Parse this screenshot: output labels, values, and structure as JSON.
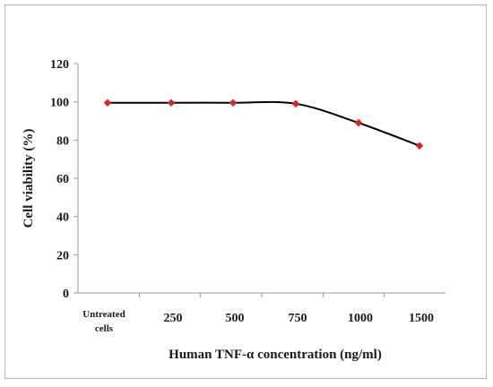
{
  "chart_data": {
    "type": "line",
    "title": "",
    "xlabel": "Human TNF-α concentration (ng/ml)",
    "ylabel": "Cell viability (%)",
    "categories": [
      [
        "Untreated",
        "cells"
      ],
      [
        "250"
      ],
      [
        "500"
      ],
      [
        "750"
      ],
      [
        "1000"
      ],
      [
        "1500"
      ]
    ],
    "series": [
      {
        "values": [
          99.5,
          99.5,
          99.5,
          99,
          89,
          77
        ],
        "line_color": "#000000",
        "marker_color": "#e02020"
      }
    ],
    "ylim": [
      0,
      120
    ],
    "yticks": [
      "0",
      "20",
      "40",
      "60",
      "80",
      "100",
      "120"
    ],
    "grid": false,
    "legend": "none"
  }
}
